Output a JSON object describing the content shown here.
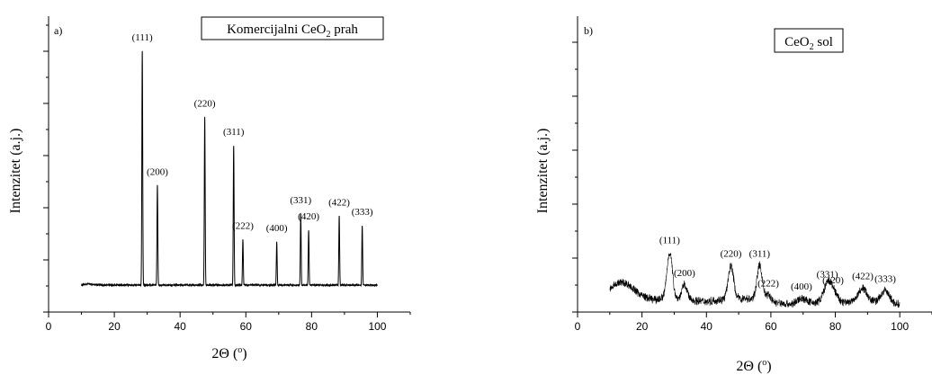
{
  "chart_data": [
    {
      "type": "line",
      "panel_label": "a)",
      "legend": {
        "text": "Komercijalni CeO",
        "sub": "2",
        "suffix": " prah",
        "placement": "top-right"
      },
      "xlabel": "2Θ (",
      "xlabel_sup": "o",
      "xlabel_end": ")",
      "ylabel": "Intenzitet (a.j.)",
      "xlim": [
        0,
        110
      ],
      "ylim": [
        0,
        100
      ],
      "x_ticks": [
        0,
        20,
        40,
        60,
        80,
        100
      ],
      "x_tick_labels": [
        "0",
        "20",
        "40",
        "60",
        "80",
        "100"
      ],
      "baseline": 11,
      "background": [
        [
          10,
          11
        ],
        [
          12,
          11.5
        ],
        [
          14,
          11.2
        ],
        [
          18,
          10.8
        ],
        [
          22,
          10.6
        ],
        [
          26,
          10.6
        ],
        [
          40,
          10.4
        ],
        [
          60,
          10.3
        ],
        [
          80,
          10.3
        ],
        [
          100,
          10.2
        ]
      ],
      "peaks": [
        {
          "label": "(111)",
          "x": 28.5,
          "y": 100
        },
        {
          "label": "(200)",
          "x": 33.1,
          "y": 43
        },
        {
          "label": "(220)",
          "x": 47.5,
          "y": 72
        },
        {
          "label": "(311)",
          "x": 56.3,
          "y": 60
        },
        {
          "label": "(222)",
          "x": 59.1,
          "y": 20
        },
        {
          "label": "(400)",
          "x": 69.4,
          "y": 19
        },
        {
          "label": "(331)",
          "x": 76.7,
          "y": 31
        },
        {
          "label": "(420)",
          "x": 79.1,
          "y": 24
        },
        {
          "label": "(422)",
          "x": 88.4,
          "y": 30
        },
        {
          "label": "(333)",
          "x": 95.4,
          "y": 26
        }
      ]
    },
    {
      "type": "line",
      "panel_label": "b)",
      "legend": {
        "text": "CeO",
        "sub": "2",
        "suffix": " sol",
        "placement": "top-right"
      },
      "xlabel": "2Θ (",
      "xlabel_sup": "o",
      "xlabel_end": ")",
      "ylabel": "Intenzitet (a.j.)",
      "xlim": [
        0,
        110
      ],
      "ylim": [
        0,
        100
      ],
      "x_ticks": [
        0,
        20,
        40,
        60,
        80,
        100
      ],
      "x_tick_labels": [
        "0",
        "20",
        "40",
        "60",
        "80",
        "100"
      ],
      "background": [
        [
          10,
          14
        ],
        [
          12,
          18
        ],
        [
          14,
          19
        ],
        [
          16,
          17
        ],
        [
          18,
          13
        ],
        [
          20,
          10
        ],
        [
          22,
          8
        ],
        [
          24,
          7
        ],
        [
          26,
          8
        ],
        [
          40,
          6
        ],
        [
          44,
          7
        ],
        [
          52,
          8
        ],
        [
          62,
          5
        ],
        [
          66,
          4
        ],
        [
          72,
          5
        ],
        [
          82,
          5
        ],
        [
          86,
          6
        ],
        [
          92,
          6
        ],
        [
          100,
          4
        ]
      ],
      "peaks": [
        {
          "label": "(111)",
          "x": 28.6,
          "y": 39
        },
        {
          "label": "(200)",
          "x": 33.2,
          "y": 17
        },
        {
          "label": "(220)",
          "x": 47.6,
          "y": 30
        },
        {
          "label": "(311)",
          "x": 56.5,
          "y": 30
        },
        {
          "label": "(222)",
          "x": 59.2,
          "y": 10
        },
        {
          "label": "(400)",
          "x": 69.5,
          "y": 8
        },
        {
          "label": "(331)",
          "x": 77.5,
          "y": 16
        },
        {
          "label": "(420)",
          "x": 79.3,
          "y": 12
        },
        {
          "label": "(422)",
          "x": 88.5,
          "y": 15
        },
        {
          "label": "(333)",
          "x": 95.5,
          "y": 13
        }
      ]
    }
  ]
}
